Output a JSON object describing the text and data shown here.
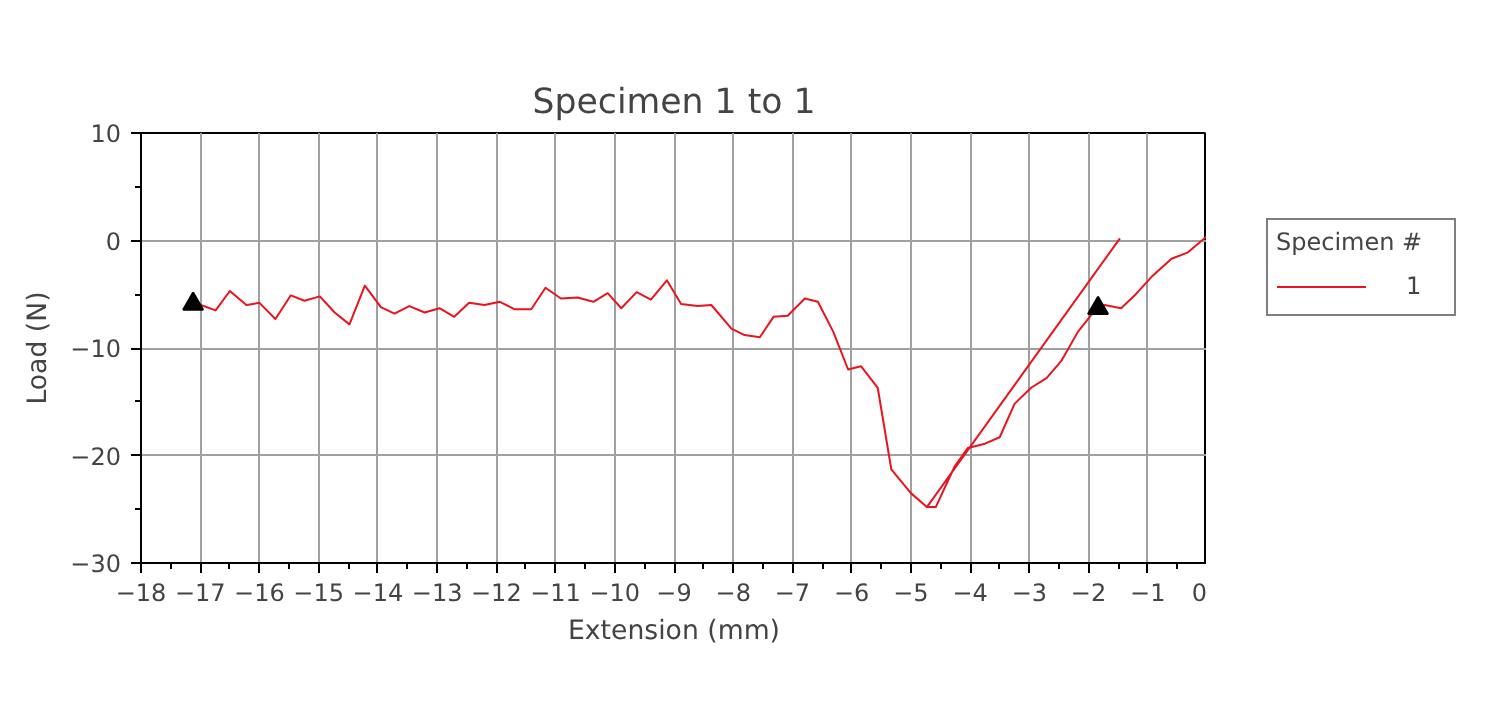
{
  "chart_data": {
    "type": "line",
    "title": "Specimen 1 to 1",
    "xlabel": "Extension (mm)",
    "ylabel": "Load (N)",
    "legend_title": "Specimen #",
    "xlim": [
      -18,
      0
    ],
    "ylim": [
      -30,
      10
    ],
    "xticks": [
      -18,
      -17,
      -16,
      -15,
      -14,
      -13,
      -12,
      -11,
      -10,
      -9,
      -8,
      -7,
      -6,
      -5,
      -4,
      -3,
      -2,
      -1,
      0,
      {
        "value": -17.5,
        "label": null
      },
      {
        "value": -16.5,
        "label": null
      },
      {
        "value": -15.5,
        "label": null
      },
      {
        "value": -14.5,
        "label": null
      },
      {
        "value": -13.5,
        "label": null
      },
      {
        "value": -12.5,
        "label": null
      },
      {
        "value": -11.5,
        "label": null
      },
      {
        "value": -10.5,
        "label": null
      },
      {
        "value": -9.5,
        "label": null
      },
      {
        "value": -8.5,
        "label": null
      },
      {
        "value": -7.5,
        "label": null
      },
      {
        "value": -6.5,
        "label": null
      },
      {
        "value": -5.5,
        "label": null
      },
      {
        "value": -4.5,
        "label": null
      },
      {
        "value": -3.5,
        "label": null
      },
      {
        "value": -2.5,
        "label": null
      },
      {
        "value": -1.5,
        "label": null
      },
      {
        "value": -0.5,
        "label": null
      }
    ],
    "yticks": [
      -30,
      -20,
      -10,
      0,
      10,
      {
        "value": -25,
        "label": null
      },
      {
        "value": -15,
        "label": null
      },
      {
        "value": -5,
        "label": null
      },
      {
        "value": 5,
        "label": null
      }
    ],
    "grid": true,
    "legend": "right",
    "line_style": "solid",
    "series": [
      {
        "name": "1",
        "color": "#e8141e",
        "x": [
          -17.12,
          -16.99,
          -16.74,
          -16.5,
          -16.22,
          -16.0,
          -15.73,
          -15.47,
          -15.24,
          -14.98,
          -14.73,
          -14.48,
          -14.22,
          -13.95,
          -13.72,
          -13.47,
          -13.21,
          -12.96,
          -12.71,
          -12.46,
          -12.2,
          -11.94,
          -11.69,
          -11.41,
          -11.17,
          -10.91,
          -10.63,
          -10.36,
          -10.12,
          -9.89,
          -9.63,
          -9.39,
          -9.12,
          -8.88,
          -8.6,
          -8.37,
          -8.03,
          -7.81,
          -7.55,
          -7.32,
          -7.08,
          -6.79,
          -6.57,
          -6.31,
          -6.06,
          -5.84,
          -5.56,
          -5.33,
          -5.0,
          -4.73,
          -4.58,
          -4.26,
          -4.04,
          -3.75,
          -3.5,
          -3.25,
          -2.97,
          -2.71,
          -2.46,
          -2.18,
          -1.95,
          -1.73,
          -1.45,
          -1.22,
          -0.94,
          -0.6,
          -0.32,
          0.0,
          -1.0,
          -4.73,
          -1.47
        ],
        "values": [
          -5.9,
          -6.0,
          -6.5,
          -4.7,
          -6.0,
          -5.8,
          -7.3,
          -5.1,
          -5.6,
          -5.2,
          -6.7,
          -7.8,
          -4.2,
          -6.2,
          -6.8,
          -6.1,
          -6.7,
          -6.3,
          -7.1,
          -5.8,
          -6.0,
          -5.7,
          -6.4,
          -6.4,
          -4.4,
          -5.4,
          -5.3,
          -5.7,
          -4.9,
          -6.3,
          -4.8,
          -5.5,
          -3.7,
          -5.9,
          -6.1,
          -6.0,
          -8.2,
          -8.8,
          -9.0,
          -7.1,
          -7.0,
          -5.4,
          -5.7,
          -8.5,
          -12.0,
          -11.7,
          -13.7,
          -21.3,
          -23.5,
          -24.8,
          -24.8,
          -21.0,
          -19.3,
          -18.9,
          -18.3,
          -15.2,
          -13.7,
          -12.8,
          -11.2,
          -8.5,
          -6.9,
          -6.0,
          -6.3,
          -5.1,
          -3.4,
          -1.7,
          -1.1,
          0.4,
          null,
          -24.8,
          0.2
        ]
      },
      {
        "type": "scatter",
        "marker": "triangle",
        "color": "#000000",
        "x": [
          -17.12,
          -1.84
        ],
        "values": [
          -5.9,
          -6.3
        ]
      }
    ]
  }
}
